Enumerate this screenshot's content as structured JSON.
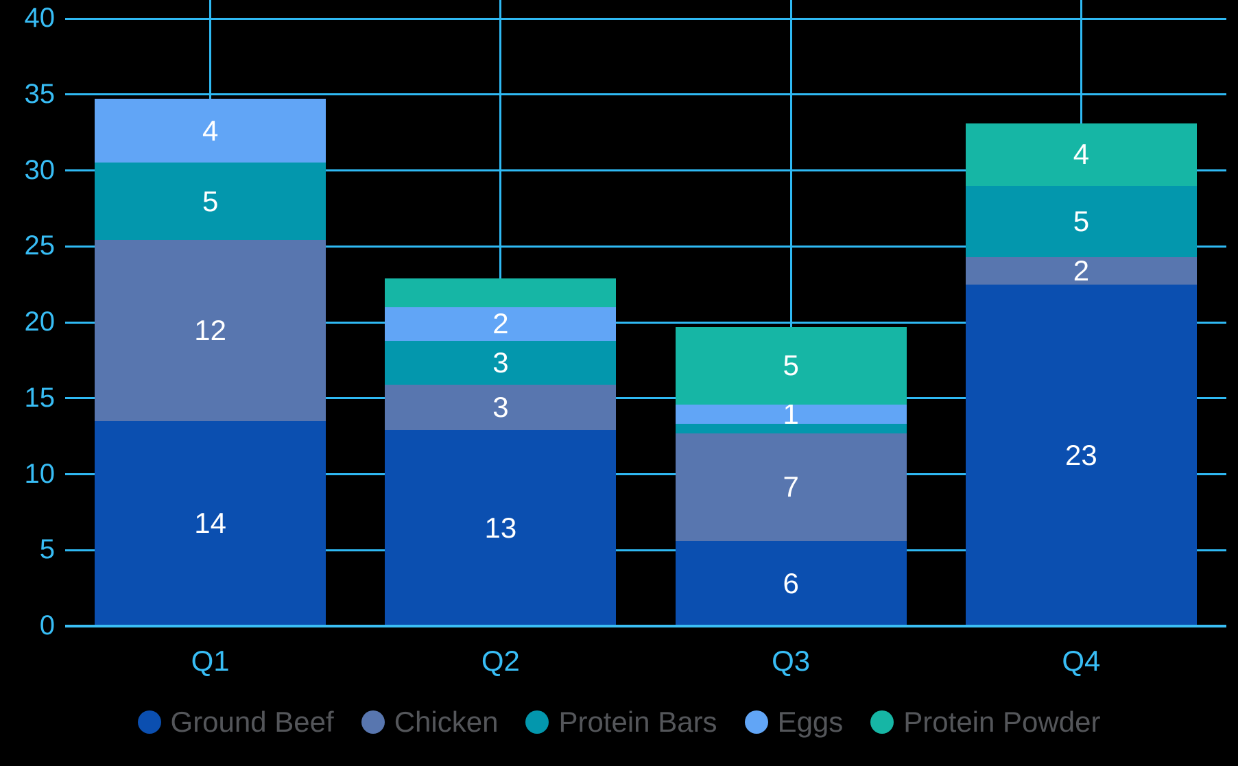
{
  "chart_data": {
    "type": "bar",
    "stacked": true,
    "title": "",
    "xlabel": "",
    "ylabel": "",
    "categories": [
      "Q1",
      "Q2",
      "Q3",
      "Q4"
    ],
    "series": [
      {
        "name": "Ground Beef",
        "color": "#0b4fb0",
        "values": [
          13.5,
          12.9,
          5.6,
          22.5
        ],
        "labels": [
          "14",
          "13",
          "6",
          "23"
        ]
      },
      {
        "name": "Chicken",
        "color": "#5876af",
        "values": [
          11.9,
          3.0,
          7.1,
          1.8
        ],
        "labels": [
          "12",
          "3",
          "7",
          "2"
        ]
      },
      {
        "name": "Protein Bars",
        "color": "#0397ad",
        "values": [
          5.1,
          2.9,
          0.6,
          4.7
        ],
        "labels": [
          "5",
          "3",
          "",
          "5"
        ]
      },
      {
        "name": "Eggs",
        "color": "#61a5f6",
        "values": [
          4.2,
          2.2,
          1.3,
          0
        ],
        "labels": [
          "4",
          "2",
          "1",
          ""
        ]
      },
      {
        "name": "Protein Powder",
        "color": "#16b6a5",
        "values": [
          0,
          1.9,
          5.1,
          4.1
        ],
        "labels": [
          "",
          "",
          "5",
          "4"
        ]
      }
    ],
    "ylim": [
      0,
      40
    ],
    "yticks": [
      "0",
      "5",
      "10",
      "15",
      "20",
      "25",
      "30",
      "35",
      "40"
    ],
    "grid": true,
    "vertical_gridlines_at_categories": true,
    "legend_position": "bottom",
    "value_labels": "white, centered in segments, hidden when segment too small"
  },
  "colors": {
    "background": "#000000",
    "gridline": "#2fb9f3",
    "axis_line": "#3bbff5",
    "axis_text": "#38bdf5",
    "data_label_text": "#ffffff",
    "legend_text": "#54565a"
  }
}
